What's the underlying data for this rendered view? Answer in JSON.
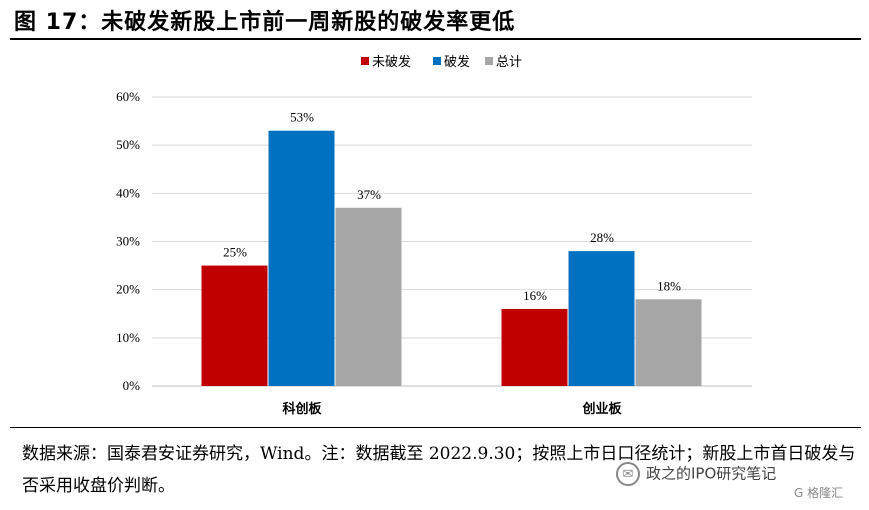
{
  "title": "图 17：未破发新股上市前一周新股的破发率更低",
  "source_note": "数据来源：国泰君安证券研究，Wind。注：数据截至 2022.9.30；按照上市日口径统计；新股上市首日破发与否采用收盘价判断。",
  "watermark": "政之的IPO研究笔记",
  "brand": "G 格隆汇",
  "colors": {
    "未破发": "#C00000",
    "破发": "#0070C0",
    "总计": "#A6A6A6",
    "grid": "#D9D9D9"
  },
  "chart_data": {
    "type": "bar",
    "title": "",
    "xlabel": "",
    "ylabel": "",
    "categories": [
      "科创板",
      "创业板"
    ],
    "series": [
      {
        "name": "未破发",
        "values": [
          25,
          16
        ],
        "labels": [
          "25%",
          "16%"
        ]
      },
      {
        "name": "破发",
        "values": [
          53,
          28
        ],
        "labels": [
          "53%",
          "28%"
        ]
      },
      {
        "name": "总计",
        "values": [
          37,
          18
        ],
        "labels": [
          "37%",
          "18%"
        ]
      }
    ],
    "ylim": [
      0,
      60
    ],
    "yticks": [
      0,
      10,
      20,
      30,
      40,
      50,
      60
    ],
    "ytick_labels": [
      "0%",
      "10%",
      "20%",
      "30%",
      "40%",
      "50%",
      "60%"
    ],
    "grid": true,
    "legend_position": "top-center"
  }
}
